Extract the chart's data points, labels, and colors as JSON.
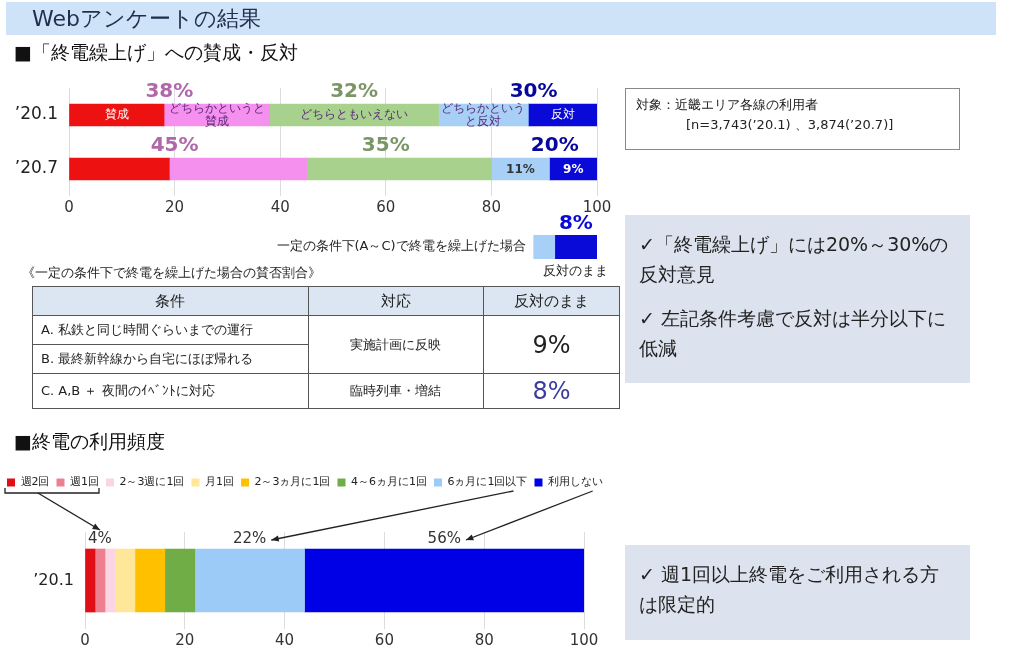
{
  "chart_data": [
    {
      "type": "bar",
      "title": "Webアンケートの結果",
      "subtitle": "■「終電繰上げ」への賛成・反対",
      "orientation": "horizontal",
      "stacked": true,
      "categories": [
        "’20.1",
        "’20.7"
      ],
      "series": [
        {
          "name": "賛成",
          "color": "#ee1111",
          "values": [
            18,
            19
          ]
        },
        {
          "name": "どちらかというと賛成",
          "color": "#f590ee",
          "values": [
            20,
            26
          ]
        },
        {
          "name": "どちらともいえない",
          "color": "#a9d18e",
          "values": [
            32,
            35
          ]
        },
        {
          "name": "どちらかというと反対",
          "color": "#a8cff5",
          "values": [
            17,
            11
          ],
          "value_labels": [
            null,
            "11%"
          ]
        },
        {
          "name": "反対",
          "color": "#0a0ad8",
          "values": [
            13,
            9
          ],
          "value_labels": [
            null,
            "9%"
          ]
        }
      ],
      "xlim": [
        0,
        100
      ],
      "xticks": [
        0,
        20,
        40,
        60,
        80,
        100
      ],
      "grid": "x",
      "annotations": [
        "38%",
        "32%",
        "30%",
        "45%",
        "35%",
        "20%"
      ]
    },
    {
      "type": "bar",
      "orientation": "horizontal",
      "categories": [
        "一定の条件下(A～C)で終電を繰上げた場合"
      ],
      "series": [
        {
          "color": "#a8cff5",
          "base": [
            88
          ],
          "values": [
            4
          ]
        },
        {
          "name": "反対のまま",
          "color": "#0a0ad8",
          "base": [
            92
          ],
          "values": [
            8
          ],
          "value_labels": [
            "8%"
          ]
        }
      ],
      "xlim": [
        0,
        100
      ],
      "tick_labels": "y"
    },
    {
      "type": "other",
      "title": "《一定の条件下で終電を繰上げた場合の賛否割合》",
      "annotations": [
        "条件",
        "対応",
        "反対のまま",
        "A. 私鉄と同じ時間ぐらいまでの運行",
        "実施計画に反映",
        "9%",
        "B. 最終新幹線から自宅にほぼ帰れる",
        "C. A,B ＋ 夜間のｲﾍﾞﾝﾄに対応",
        "臨時列車・増結",
        "8%"
      ]
    },
    {
      "type": "other",
      "annotations": [
        "対象：近畿エリア各線の利用者",
        "[n=3,743(’20.1) 、3,874(’20.7)]"
      ]
    },
    {
      "type": "other",
      "annotations": [
        "✓「終電繰上げ」には20%～30%の反対意見",
        "✓ 左記条件考慮で反対は半分以下に低減"
      ]
    },
    {
      "type": "bar",
      "title": "■終電の利用頻度",
      "orientation": "horizontal",
      "stacked": true,
      "categories": [
        "’20.1"
      ],
      "series": [
        {
          "name": "週2回",
          "color": "#e00f16",
          "values": [
            2
          ]
        },
        {
          "name": "週1回",
          "color": "#ee7f8e",
          "values": [
            2
          ]
        },
        {
          "name": "2～3週に1回",
          "color": "#fbd5e4",
          "values": [
            2
          ]
        },
        {
          "name": "月1回",
          "color": "#ffe699",
          "values": [
            4
          ]
        },
        {
          "name": "2～3ヵ月に1回",
          "color": "#ffc000",
          "values": [
            6
          ]
        },
        {
          "name": "4～6ヵ月に1回",
          "color": "#70ad47",
          "values": [
            6
          ]
        },
        {
          "name": "6ヵ月に1回以下",
          "color": "#9dcbf7",
          "values": [
            22
          ]
        },
        {
          "name": "利用しない",
          "color": "#0000e6",
          "values": [
            56
          ]
        }
      ],
      "xlim": [
        0,
        100
      ],
      "xticks": [
        0,
        20,
        40,
        60,
        80,
        100
      ],
      "grid": "x",
      "legend": "top left",
      "annotations": [
        "4%",
        "22%",
        "56%"
      ]
    },
    {
      "type": "other",
      "annotations": [
        "✓ 週1回以上終電をご利用される方は限定的"
      ]
    }
  ]
}
